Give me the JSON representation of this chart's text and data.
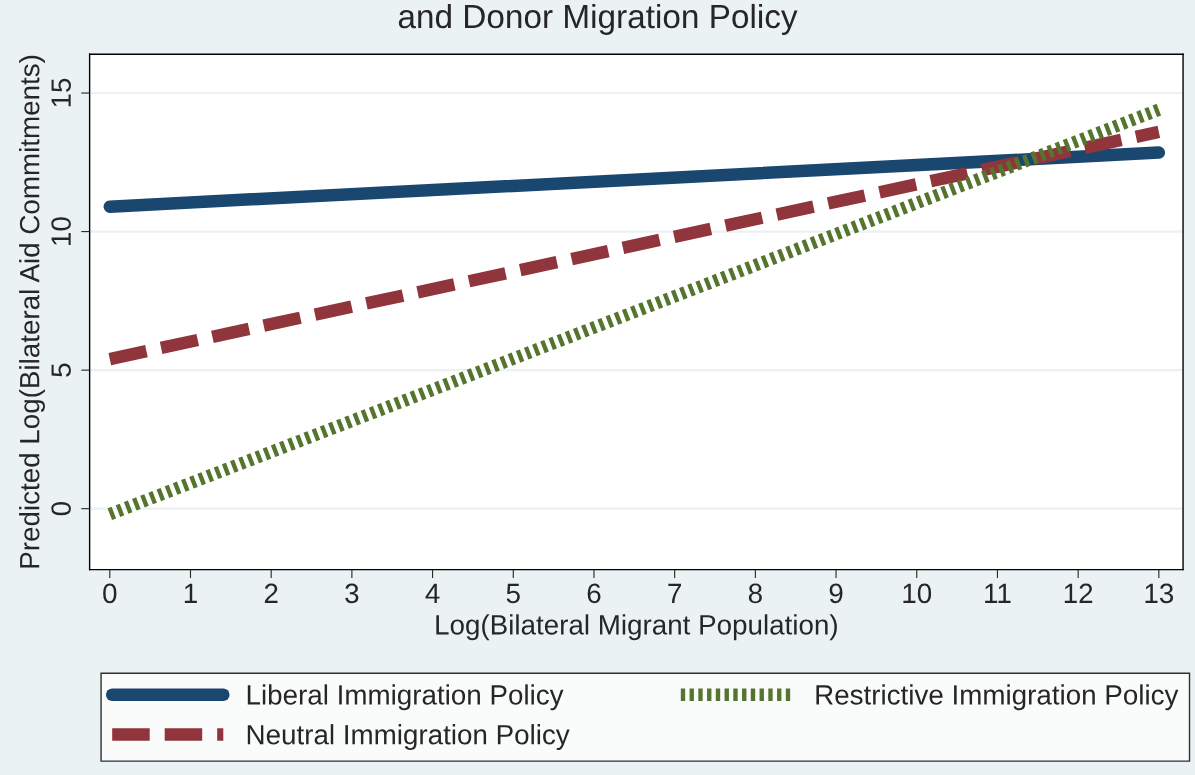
{
  "chart_data": {
    "type": "line",
    "title": "and Donor Migration Policy",
    "xlabel": "Log(Bilateral Migrant Population)",
    "ylabel": "Predicted Log(Bilateral Aid Commitments)",
    "x": [
      0,
      13
    ],
    "series": [
      {
        "name": "Liberal Immigration Policy",
        "color": "#1a476f",
        "values": [
          10.9,
          12.85
        ],
        "line_style": "solid"
      },
      {
        "name": "Neutral Immigration Policy",
        "color": "#90353b",
        "values": [
          5.4,
          13.6
        ],
        "line_style": "dashed"
      },
      {
        "name": "Restrictive Immigration Policy",
        "color": "#55752f",
        "values": [
          -0.2,
          14.4
        ],
        "line_style": "dotted"
      }
    ],
    "xlim": [
      -0.25,
      13.3
    ],
    "ylim": [
      -2.2,
      16.4
    ],
    "xticks": [
      0,
      1,
      2,
      3,
      4,
      5,
      6,
      7,
      8,
      9,
      10,
      11,
      12,
      13
    ],
    "yticks": [
      0,
      5,
      10,
      15
    ],
    "grid": "y",
    "legend": "bottom"
  }
}
